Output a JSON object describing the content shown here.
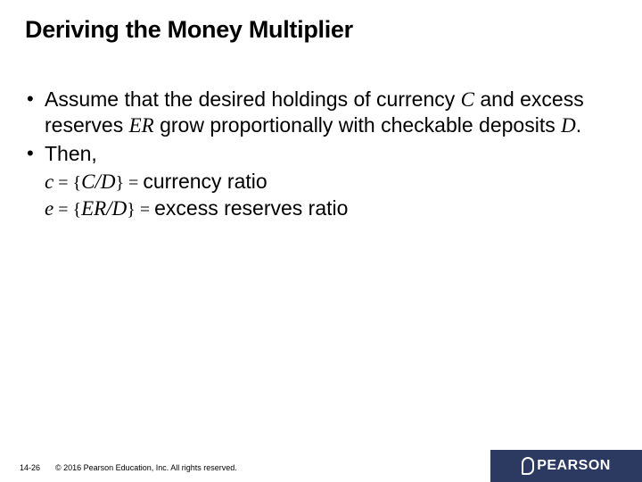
{
  "title": "Deriving the Money Multiplier",
  "bullet1": {
    "pre": "Assume that the desired holdings of currency ",
    "c": "C",
    "mid1": " and excess reserves ",
    "er": "ER",
    "mid2": " grow proportionally with checkable deposits ",
    "d": "D",
    "post": "."
  },
  "bullet2": "Then,",
  "formula1": {
    "lhs": "c",
    "eq1": " = {",
    "frac": "C/D",
    "eq2": "} = ",
    "desc": "currency ratio"
  },
  "formula2": {
    "lhs": "e",
    "eq1": " = {",
    "frac": "ER/D",
    "eq2": "} = ",
    "desc": "excess reserves ratio"
  },
  "footer": {
    "page": "14-26",
    "copyright": "© 2016 Pearson Education, Inc. All rights reserved.",
    "brand": "PEARSON"
  }
}
